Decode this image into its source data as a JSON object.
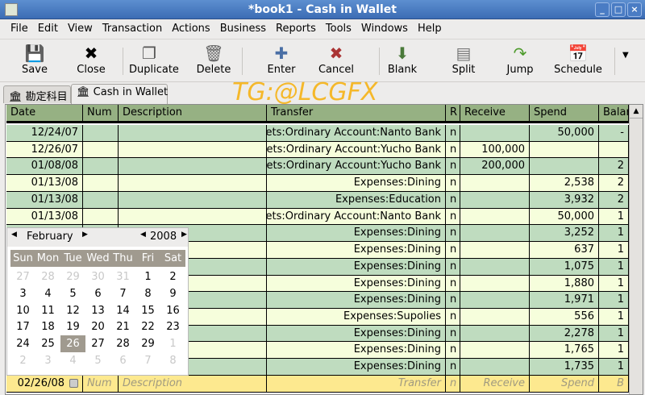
{
  "window": {
    "title": "*book1 - Cash in Wallet",
    "controls": [
      "_",
      "□",
      "×"
    ]
  },
  "menu": [
    "File",
    "Edit",
    "View",
    "Transaction",
    "Actions",
    "Business",
    "Reports",
    "Tools",
    "Windows",
    "Help"
  ],
  "toolbar": [
    {
      "label": "Save",
      "icon": "floppy-icon"
    },
    {
      "label": "Close",
      "icon": "close-icon"
    },
    {
      "label": "Duplicate",
      "icon": "duplicate-icon"
    },
    {
      "label": "Delete",
      "icon": "trash-icon"
    },
    {
      "label": "Enter",
      "icon": "plus-icon"
    },
    {
      "label": "Cancel",
      "icon": "cancel-icon"
    },
    {
      "label": "Blank",
      "icon": "down-arrow-icon"
    },
    {
      "label": "Split",
      "icon": "split-icon"
    },
    {
      "label": "Jump",
      "icon": "jump-icon"
    },
    {
      "label": "Schedule",
      "icon": "calendar-add-icon"
    }
  ],
  "tabs": [
    {
      "label": "勘定科目"
    },
    {
      "label": "Cash in Wallet",
      "active": true
    }
  ],
  "watermark": "TG:@LCGFX",
  "columns": [
    "Date",
    "Num",
    "Description",
    "Transfer",
    "R",
    "Receive",
    "Spend",
    "Balar"
  ],
  "rows": [
    {
      "date": "12/24/07",
      "num": "",
      "desc": "",
      "transfer": "sets:Ordinary Account:Nanto Bank",
      "r": "n",
      "receive": "",
      "spend": "50,000",
      "balance": "-"
    },
    {
      "date": "12/26/07",
      "num": "",
      "desc": "",
      "transfer": "sets:Ordinary Account:Yucho Bank",
      "r": "n",
      "receive": "100,000",
      "spend": "",
      "balance": ""
    },
    {
      "date": "01/08/08",
      "num": "",
      "desc": "",
      "transfer": "sets:Ordinary Account:Yucho Bank",
      "r": "n",
      "receive": "200,000",
      "spend": "",
      "balance": "2"
    },
    {
      "date": "01/13/08",
      "num": "",
      "desc": "",
      "transfer": "Expenses:Dining",
      "r": "n",
      "receive": "",
      "spend": "2,538",
      "balance": "2"
    },
    {
      "date": "01/13/08",
      "num": "",
      "desc": "",
      "transfer": "Expenses:Education",
      "r": "n",
      "receive": "",
      "spend": "3,932",
      "balance": "2"
    },
    {
      "date": "01/13/08",
      "num": "",
      "desc": "",
      "transfer": "sets:Ordinary Account:Nanto Bank",
      "r": "n",
      "receive": "",
      "spend": "50,000",
      "balance": "1"
    },
    {
      "date": "",
      "num": "",
      "desc": "",
      "transfer": "Expenses:Dining",
      "r": "n",
      "receive": "",
      "spend": "3,252",
      "balance": "1"
    },
    {
      "date": "",
      "num": "",
      "desc": "",
      "transfer": "Expenses:Dining",
      "r": "n",
      "receive": "",
      "spend": "637",
      "balance": "1"
    },
    {
      "date": "",
      "num": "",
      "desc": "",
      "transfer": "Expenses:Dining",
      "r": "n",
      "receive": "",
      "spend": "1,075",
      "balance": "1"
    },
    {
      "date": "",
      "num": "",
      "desc": "",
      "transfer": "Expenses:Dining",
      "r": "n",
      "receive": "",
      "spend": "1,880",
      "balance": "1"
    },
    {
      "date": "",
      "num": "",
      "desc": "",
      "transfer": "Expenses:Dining",
      "r": "n",
      "receive": "",
      "spend": "1,971",
      "balance": "1"
    },
    {
      "date": "",
      "num": "",
      "desc": "",
      "transfer": "Expenses:Supolies",
      "r": "n",
      "receive": "",
      "spend": "556",
      "balance": "1"
    },
    {
      "date": "",
      "num": "",
      "desc": "",
      "transfer": "Expenses:Dining",
      "r": "n",
      "receive": "",
      "spend": "2,278",
      "balance": "1"
    },
    {
      "date": "",
      "num": "",
      "desc": "",
      "transfer": "Expenses:Dining",
      "r": "n",
      "receive": "",
      "spend": "1,765",
      "balance": "1"
    },
    {
      "date": "",
      "num": "",
      "desc": "",
      "transfer": "Expenses:Dining",
      "r": "n",
      "receive": "",
      "spend": "1,735",
      "balance": "1"
    }
  ],
  "entry": {
    "date": "02/26/08",
    "num": "Num",
    "desc": "Description",
    "transfer": "Transfer",
    "r": "n",
    "receive": "Receive",
    "spend": "Spend",
    "balance": "B"
  },
  "calendar": {
    "month": "February",
    "year": "2008",
    "weekdays": [
      "Sun",
      "Mon",
      "Tue",
      "Wed",
      "Thu",
      "Fri",
      "Sat"
    ],
    "weeks": [
      [
        "27",
        "28",
        "29",
        "30",
        "31",
        "1",
        "2"
      ],
      [
        "3",
        "4",
        "5",
        "6",
        "7",
        "8",
        "9"
      ],
      [
        "10",
        "11",
        "12",
        "13",
        "14",
        "15",
        "16"
      ],
      [
        "17",
        "18",
        "19",
        "20",
        "21",
        "22",
        "23"
      ],
      [
        "24",
        "25",
        "26",
        "27",
        "28",
        "29",
        "1"
      ],
      [
        "2",
        "3",
        "4",
        "5",
        "6",
        "7",
        "8"
      ]
    ],
    "selected": "26"
  },
  "colors": {
    "row_green": "#bfdcbf",
    "row_yellow": "#f6fedc",
    "header": "#96b183",
    "entry": "#fde98f"
  }
}
